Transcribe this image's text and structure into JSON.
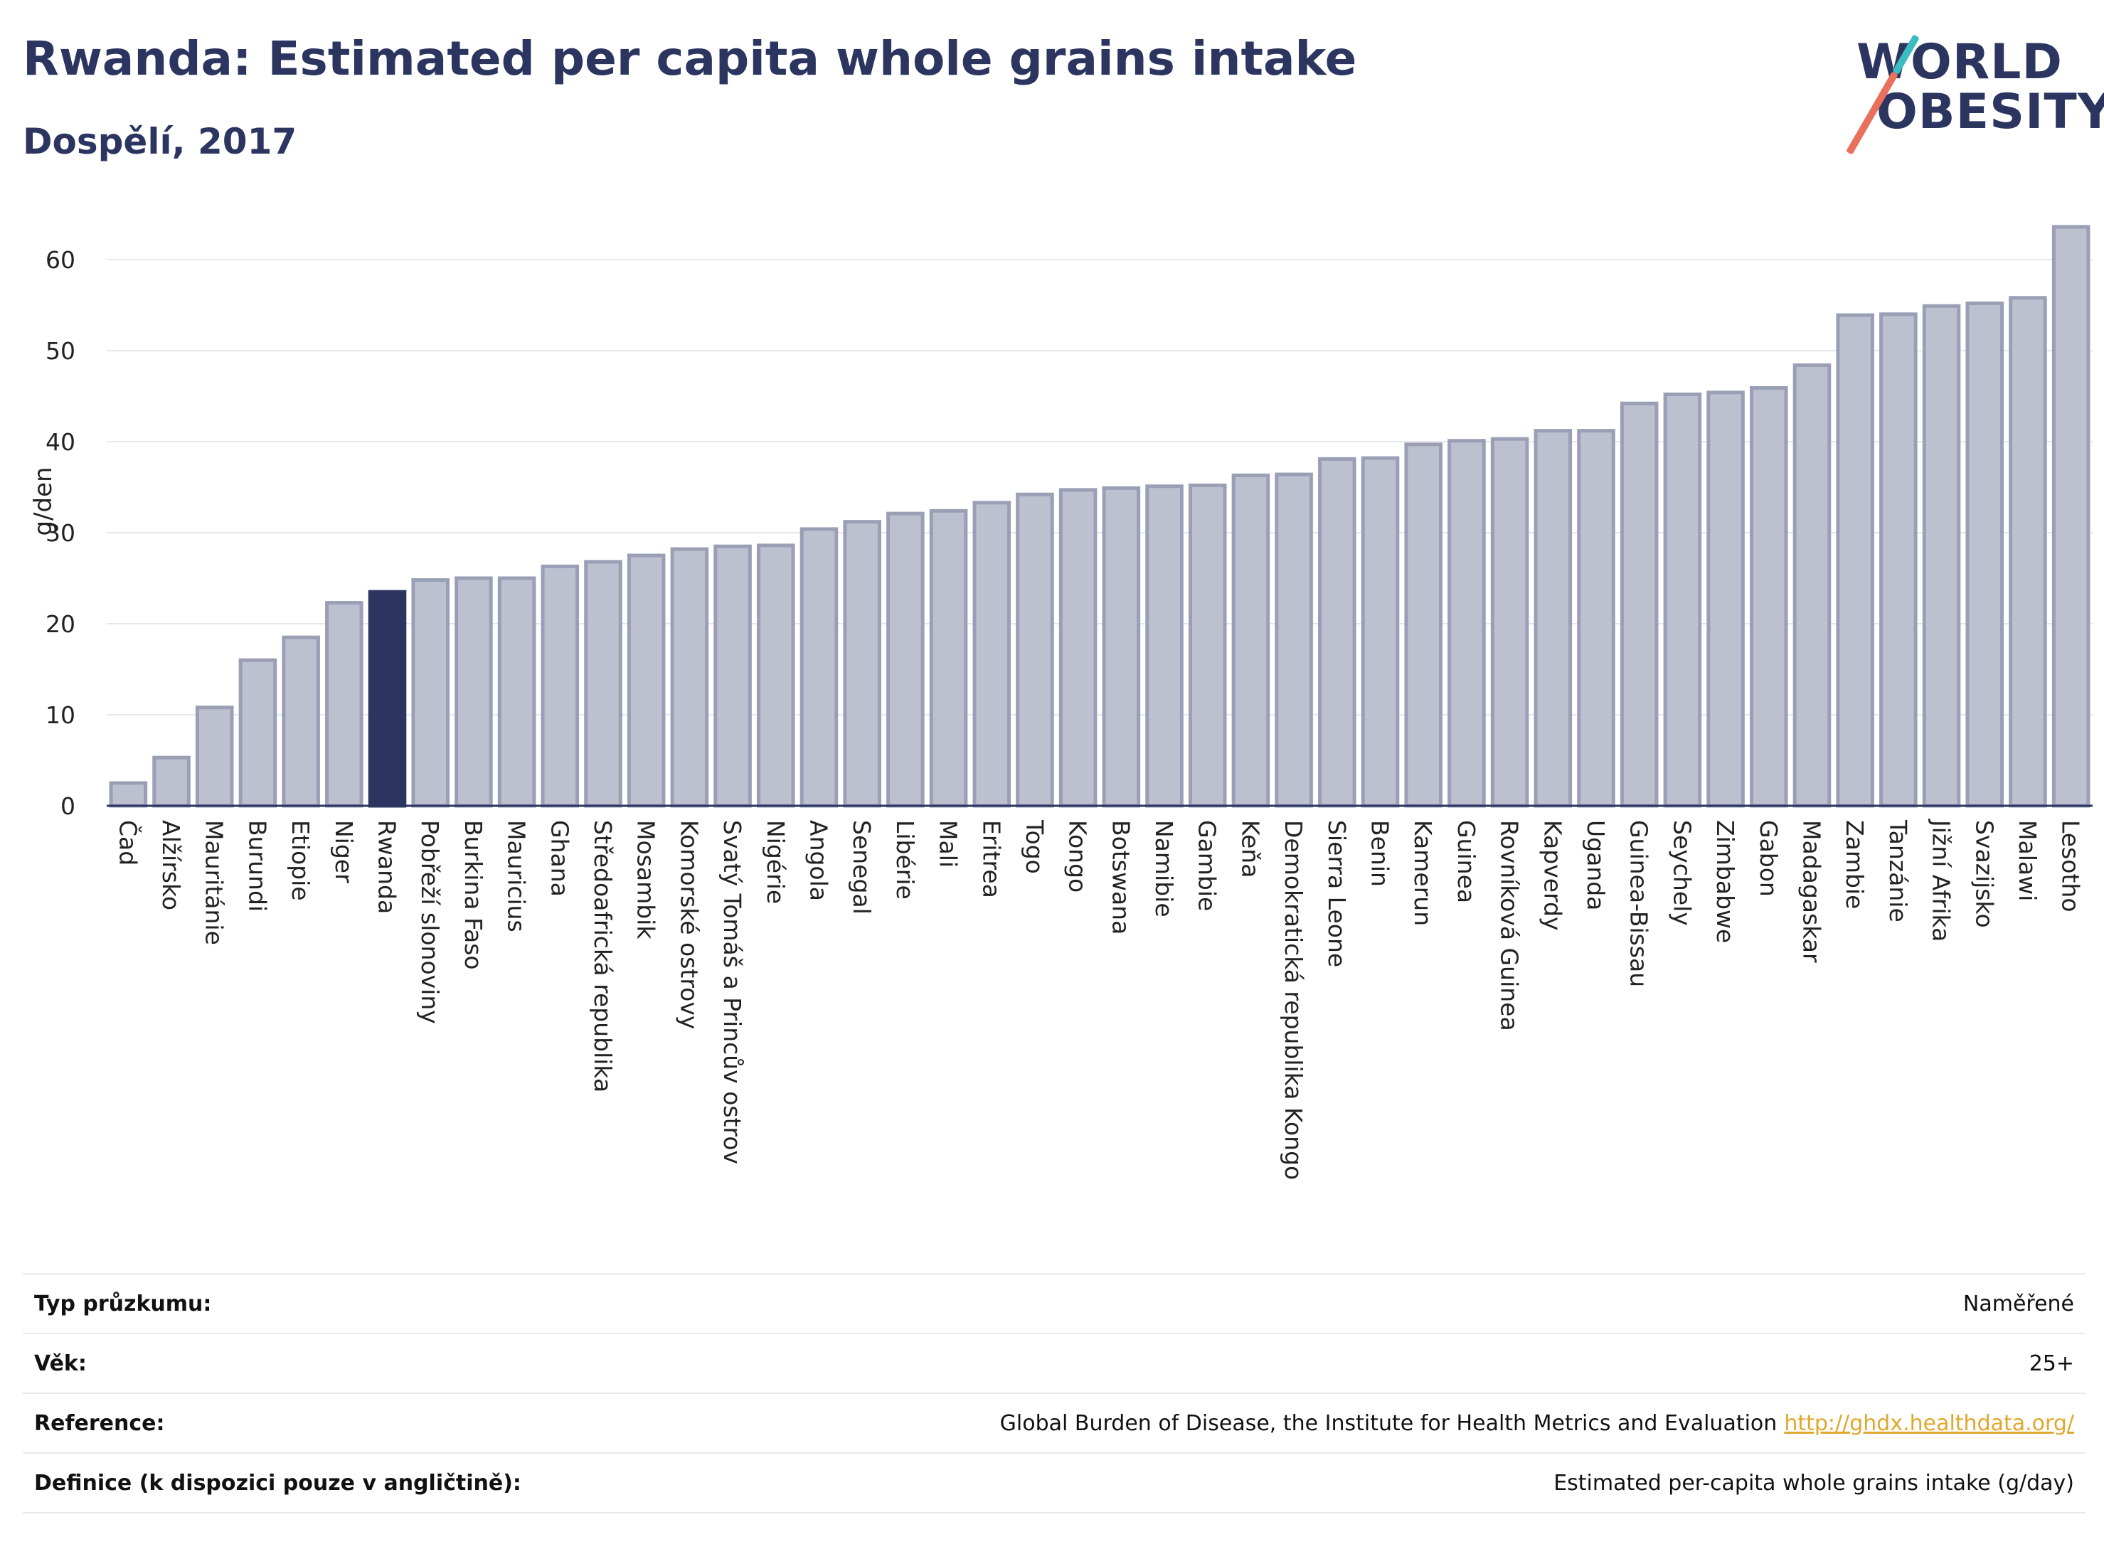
{
  "header": {
    "title": "Rwanda: Estimated per capita whole grains intake",
    "subtitle": "Dospělí, 2017"
  },
  "logo": {
    "line1": "WORLD",
    "line2": "OBESITY",
    "accent_teal": "#3bbcbf",
    "accent_coral": "#e8705c"
  },
  "colors": {
    "bar": "#bcc0cf",
    "bar_border": "#9a9fb6",
    "highlight": "#2b3560",
    "grid": "#e6e6ee",
    "axis": "#2b3560"
  },
  "chart_data": {
    "type": "bar",
    "title": "Rwanda: Estimated per capita whole grains intake",
    "subtitle": "Dospělí, 2017",
    "xlabel": "",
    "ylabel": "g/den",
    "ylim": [
      0,
      65
    ],
    "yticks": [
      0,
      10,
      20,
      30,
      40,
      50,
      60
    ],
    "grid": true,
    "highlight": "Rwanda",
    "categories": [
      "Čad",
      "Alžírsko",
      "Mauritánie",
      "Burundi",
      "Etiopie",
      "Niger",
      "Rwanda",
      "Pobřeží slonoviny",
      "Burkina Faso",
      "Mauricius",
      "Ghana",
      "Středoafrická republika",
      "Mosambik",
      "Komorské ostrovy",
      "Svatý Tomáš a Princův ostrov",
      "Nigérie",
      "Angola",
      "Senegal",
      "Libérie",
      "Mali",
      "Eritrea",
      "Togo",
      "Kongo",
      "Botswana",
      "Namibie",
      "Gambie",
      "Keňa",
      "Demokratická republika Kongo",
      "Sierra Leone",
      "Benin",
      "Kamerun",
      "Guinea",
      "Rovníková Guinea",
      "Kapverdy",
      "Uganda",
      "Guinea-Bissau",
      "Seychely",
      "Zimbabwe",
      "Gabon",
      "Madagaskar",
      "Zambie",
      "Tanzánie",
      "Jižní Afrika",
      "Svazijsko",
      "Malawi",
      "Lesotho"
    ],
    "values": [
      2.5,
      5.3,
      10.8,
      16.0,
      18.5,
      22.3,
      23.5,
      24.8,
      25.0,
      25.0,
      26.3,
      26.8,
      27.5,
      28.2,
      28.5,
      28.6,
      30.4,
      31.2,
      32.1,
      32.4,
      33.3,
      34.2,
      34.7,
      34.9,
      35.1,
      35.2,
      36.3,
      36.4,
      38.1,
      38.2,
      39.7,
      40.1,
      40.3,
      41.2,
      41.2,
      44.2,
      45.2,
      45.4,
      45.9,
      48.4,
      53.9,
      54.0,
      54.9,
      55.2,
      55.8,
      63.6
    ]
  },
  "info": [
    {
      "key": "Typ průzkumu:",
      "value": "Naměřené"
    },
    {
      "key": "Věk:",
      "value": "25+"
    },
    {
      "key": "Reference:",
      "value": "Global Burden of Disease, the Institute for Health Metrics and Evaluation",
      "link": "http://ghdx.healthdata.org/"
    },
    {
      "key": "Definice (k dispozici pouze v angličtině):",
      "value": "Estimated per-capita whole grains intake (g/day)"
    }
  ]
}
